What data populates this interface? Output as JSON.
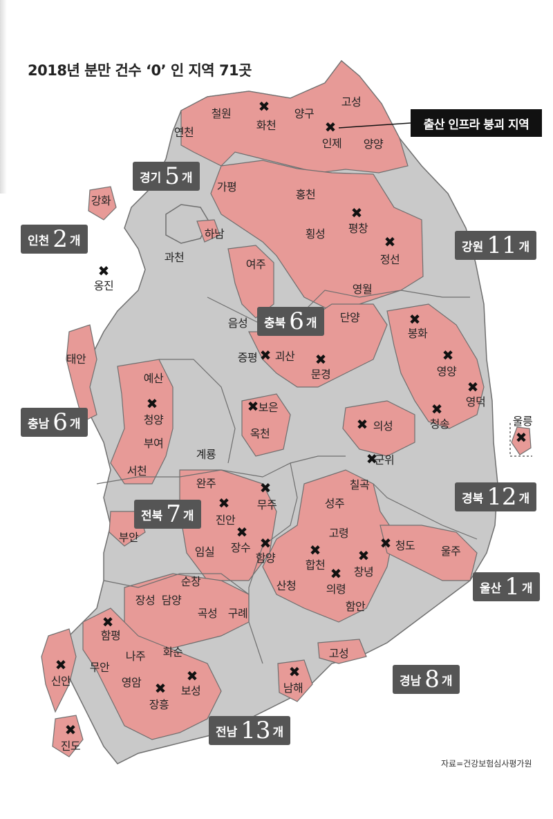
{
  "title": "2018년 분만 건수 ‘0’ 인 지역 71곳",
  "callout": "출산 인프라 붕괴 지역",
  "source": "자료=건강보험심사평가원",
  "marker_icon": "x-mark-icon",
  "colors": {
    "affected": "#e79a97",
    "other": "#c8c8c8",
    "border": "#6e6e6e",
    "badge": "#555555"
  },
  "legend_badges": [
    {
      "name": "경기",
      "count": "5",
      "unit": "개"
    },
    {
      "name": "인천",
      "count": "2",
      "unit": "개"
    },
    {
      "name": "강원",
      "count": "11",
      "unit": "개"
    },
    {
      "name": "충북",
      "count": "6",
      "unit": "개"
    },
    {
      "name": "충남",
      "count": "6",
      "unit": "개"
    },
    {
      "name": "전북",
      "count": "7",
      "unit": "개"
    },
    {
      "name": "경북",
      "count": "12",
      "unit": "개"
    },
    {
      "name": "울산",
      "count": "1",
      "unit": "개"
    },
    {
      "name": "경남",
      "count": "8",
      "unit": "개"
    },
    {
      "name": "전남",
      "count": "13",
      "unit": "개"
    }
  ],
  "regions": [
    {
      "name": "고성"
    },
    {
      "name": "철원"
    },
    {
      "name": "화천"
    },
    {
      "name": "양구"
    },
    {
      "name": "인제"
    },
    {
      "name": "양양"
    },
    {
      "name": "연천"
    },
    {
      "name": "가평"
    },
    {
      "name": "홍천"
    },
    {
      "name": "강화"
    },
    {
      "name": "하남"
    },
    {
      "name": "평창"
    },
    {
      "name": "횡성"
    },
    {
      "name": "정선"
    },
    {
      "name": "과천"
    },
    {
      "name": "여주"
    },
    {
      "name": "옹진"
    },
    {
      "name": "영월"
    },
    {
      "name": "단양"
    },
    {
      "name": "음성"
    },
    {
      "name": "봉화"
    },
    {
      "name": "증평"
    },
    {
      "name": "괴산"
    },
    {
      "name": "태안"
    },
    {
      "name": "문경"
    },
    {
      "name": "영양"
    },
    {
      "name": "예산"
    },
    {
      "name": "영덕"
    },
    {
      "name": "청양"
    },
    {
      "name": "보은"
    },
    {
      "name": "의성"
    },
    {
      "name": "청송"
    },
    {
      "name": "울릉"
    },
    {
      "name": "부여"
    },
    {
      "name": "옥천"
    },
    {
      "name": "계룡"
    },
    {
      "name": "군위"
    },
    {
      "name": "서천"
    },
    {
      "name": "칠곡"
    },
    {
      "name": "완주"
    },
    {
      "name": "무주"
    },
    {
      "name": "진안"
    },
    {
      "name": "성주"
    },
    {
      "name": "부안"
    },
    {
      "name": "장수"
    },
    {
      "name": "고령"
    },
    {
      "name": "청도"
    },
    {
      "name": "울주"
    },
    {
      "name": "임실"
    },
    {
      "name": "함양"
    },
    {
      "name": "합천"
    },
    {
      "name": "창녕"
    },
    {
      "name": "순창"
    },
    {
      "name": "산청"
    },
    {
      "name": "의령"
    },
    {
      "name": "장성"
    },
    {
      "name": "담양"
    },
    {
      "name": "곡성"
    },
    {
      "name": "구례"
    },
    {
      "name": "함안"
    },
    {
      "name": "함평"
    },
    {
      "name": "나주"
    },
    {
      "name": "화순"
    },
    {
      "name": "고성"
    },
    {
      "name": "신안"
    },
    {
      "name": "무안"
    },
    {
      "name": "남해"
    },
    {
      "name": "영암"
    },
    {
      "name": "보성"
    },
    {
      "name": "장흥"
    },
    {
      "name": "진도"
    }
  ]
}
